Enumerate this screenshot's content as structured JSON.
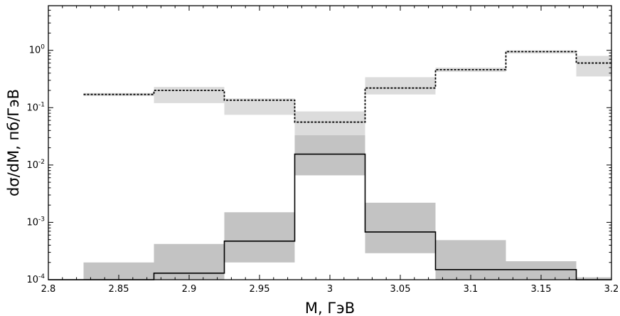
{
  "chart_data": {
    "type": "step",
    "xlabel": "M, ГэВ",
    "ylabel": "dσ/dM, пб/ГэВ",
    "xlim": [
      2.8,
      3.2
    ],
    "ylim": [
      0.0001,
      6.0
    ],
    "yscale": "log",
    "grid": false,
    "legend": "none",
    "x_ticks": [
      "2.8",
      "2.85",
      "2.9",
      "2.95",
      "3",
      "3.05",
      "3.1",
      "3.15",
      "3.2"
    ],
    "y_ticks": [
      {
        "base": "10",
        "exp": "-4",
        "value": 0.0001
      },
      {
        "base": "10",
        "exp": "-3",
        "value": 0.001
      },
      {
        "base": "10",
        "exp": "-2",
        "value": 0.01
      },
      {
        "base": "10",
        "exp": "-1",
        "value": 0.1
      },
      {
        "base": "10",
        "exp": "0",
        "value": 1
      }
    ],
    "series": [
      {
        "style": "solid",
        "color": "#000000",
        "edges": [
          2.8,
          2.825,
          2.875,
          2.925,
          2.975,
          3.025,
          3.075,
          3.125,
          3.175,
          3.2
        ],
        "values": [
          0.0001,
          9e-05,
          0.00013,
          0.00047,
          0.0155,
          0.00068,
          0.00015,
          0.00015,
          9e-05
        ],
        "band_color": "#c3c3c3",
        "band_low": [
          5e-05,
          5e-05,
          5e-05,
          0.0002,
          0.0066,
          0.00029,
          6e-05,
          6e-05,
          5e-05
        ],
        "band_high": [
          0.0001,
          0.0002,
          0.00042,
          0.0015,
          0.036,
          0.0022,
          0.00049,
          0.00021,
          0.00011
        ]
      },
      {
        "style": "dashed",
        "color": "#000000",
        "edges": [
          2.825,
          2.875,
          2.925,
          2.975,
          3.025,
          3.075,
          3.125,
          3.175,
          3.2
        ],
        "values": [
          0.17,
          0.2,
          0.135,
          0.056,
          0.22,
          0.46,
          0.95,
          0.6
        ],
        "band_color": "#dcdcdc",
        "band_low": [
          0.16,
          0.12,
          0.075,
          0.033,
          0.17,
          0.42,
          0.88,
          0.35
        ],
        "band_high": [
          0.18,
          0.23,
          0.145,
          0.086,
          0.34,
          0.5,
          1.0,
          0.8
        ]
      }
    ]
  }
}
